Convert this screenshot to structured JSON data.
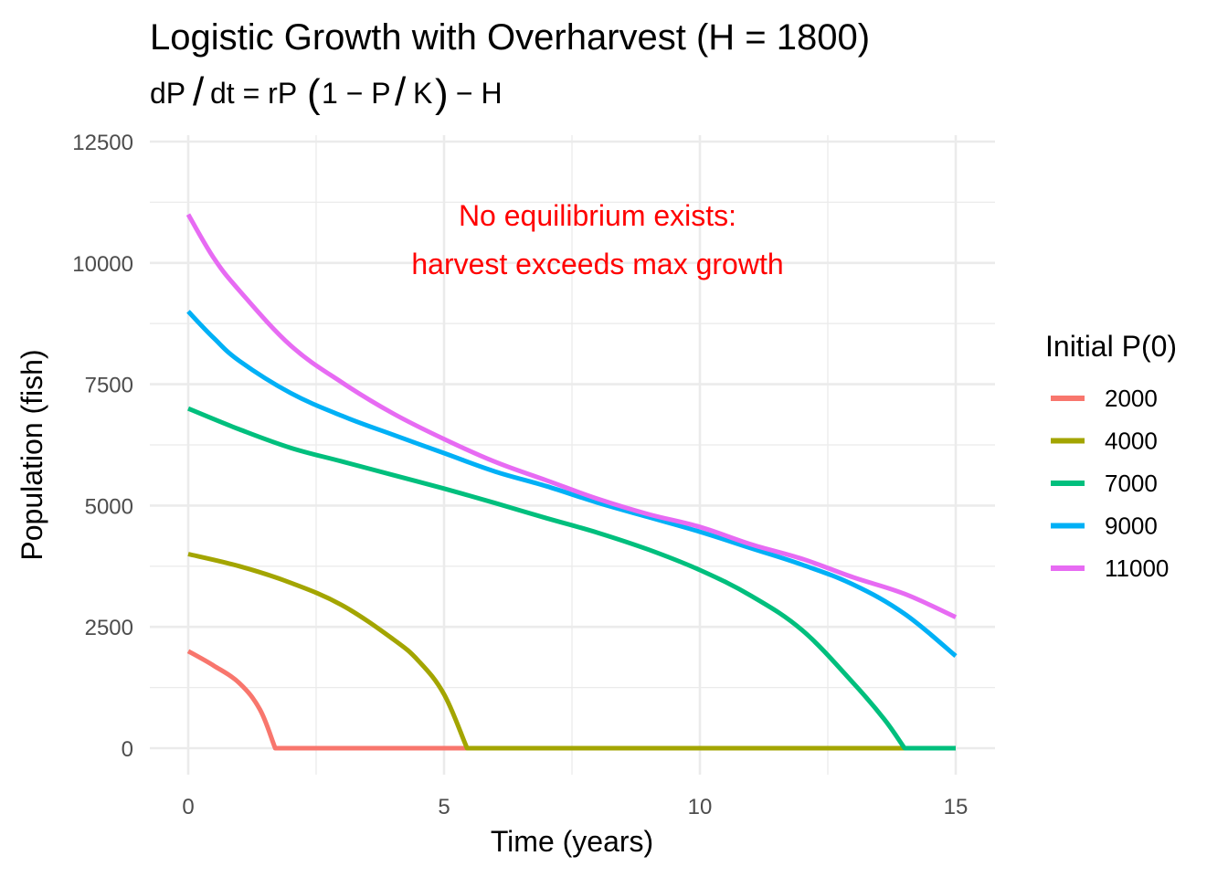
{
  "chart_data": {
    "type": "line",
    "title": "Logistic Growth with Overharvest (H = 1800)",
    "subtitle": "dP/dt = rP(1 − P/K) − H",
    "subtitle_parts": {
      "a": "dP",
      "slash1": "/",
      "b": "dt = rP",
      "lparen": "(",
      "c": "1 − P",
      "slash2": "/",
      "d": "K",
      "rparen": ")",
      "e": " − H"
    },
    "xlabel": "Time (years)",
    "ylabel": "Population (fish)",
    "xlim": [
      -0.75,
      15.75
    ],
    "ylim": [
      -500,
      12500
    ],
    "x_ticks": [
      0,
      5,
      10,
      15
    ],
    "x_tick_labels": [
      "0",
      "5",
      "10",
      "15"
    ],
    "x_minor": [
      2.5,
      7.5,
      12.5
    ],
    "y_ticks": [
      0,
      2500,
      5000,
      7500,
      10000,
      12500
    ],
    "y_tick_labels": [
      "0",
      "2500",
      "5000",
      "7500",
      "10000",
      "12500"
    ],
    "y_minor": [
      1250,
      3750,
      6250,
      8750,
      11250
    ],
    "grid": true,
    "legend": {
      "title": "Initial P(0)",
      "position": "right"
    },
    "annotation": {
      "lines": [
        "No equilibrium exists:",
        "harvest exceeds max growth"
      ],
      "x": 8.0,
      "y": 10500,
      "color": "#ff0000"
    },
    "series": [
      {
        "name": "2000",
        "color": "#f8766d",
        "x": [
          0,
          0.5,
          1,
          1.4,
          1.7,
          15
        ],
        "values": [
          2000,
          1700,
          1340,
          800,
          0,
          0
        ]
      },
      {
        "name": "4000",
        "color": "#a3a500",
        "x": [
          0,
          1,
          2,
          3,
          4,
          4.5,
          5,
          5.45,
          15
        ],
        "values": [
          4000,
          3750,
          3410,
          2950,
          2250,
          1800,
          1110,
          0,
          0
        ]
      },
      {
        "name": "7000",
        "color": "#00bf7d",
        "x": [
          0,
          1,
          2,
          3,
          4,
          5,
          6,
          7,
          8,
          9,
          10,
          11,
          12,
          13,
          13.6,
          14.0,
          15
        ],
        "values": [
          7000,
          6570,
          6190,
          5910,
          5630,
          5350,
          5050,
          4740,
          4440,
          4090,
          3670,
          3140,
          2430,
          1340,
          600,
          0,
          0
        ]
      },
      {
        "name": "9000",
        "color": "#00b0f6",
        "x": [
          0,
          0.5,
          1,
          2,
          3,
          4,
          5,
          6,
          7,
          8,
          9,
          10,
          11,
          12,
          13,
          14,
          15
        ],
        "values": [
          9000,
          8450,
          7980,
          7320,
          6850,
          6460,
          6080,
          5700,
          5400,
          5060,
          4760,
          4460,
          4120,
          3780,
          3370,
          2770,
          1900
        ]
      },
      {
        "name": "11000",
        "color": "#e76bf3",
        "x": [
          0,
          0.5,
          1,
          2,
          3,
          4,
          5,
          6,
          7,
          8,
          9,
          10,
          11,
          12,
          13,
          14,
          15
        ],
        "values": [
          11000,
          10100,
          9430,
          8300,
          7540,
          6900,
          6370,
          5900,
          5520,
          5140,
          4820,
          4560,
          4200,
          3900,
          3520,
          3180,
          2700
        ]
      }
    ]
  }
}
